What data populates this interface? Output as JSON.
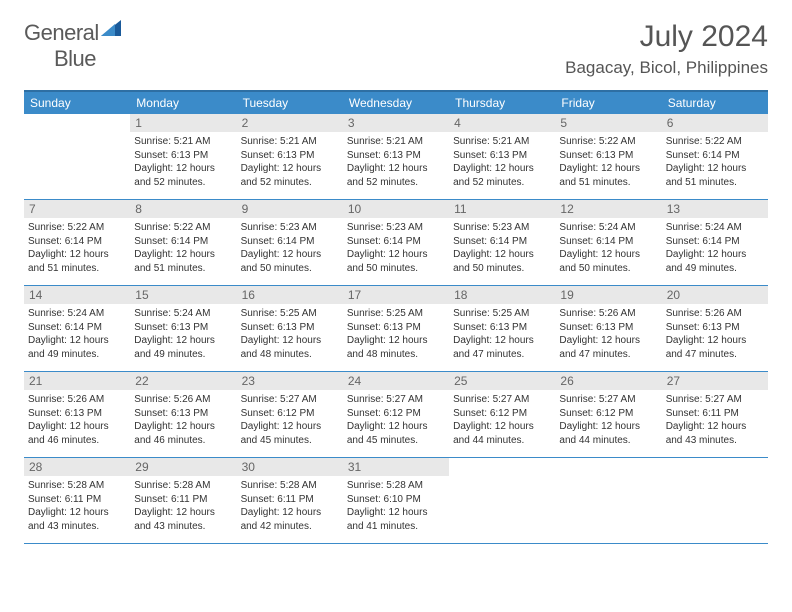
{
  "logo": {
    "textGray": "General",
    "textBlue": "Blue"
  },
  "title": "July 2024",
  "location": "Bagacay, Bicol, Philippines",
  "colors": {
    "headerBg": "#3b8bc9",
    "headerBorderTop": "#2e6fa3",
    "dayNumBg": "#e8e8e8",
    "text": "#333333",
    "logoGray": "#5a5a5a",
    "logoBlue": "#3b7bbf"
  },
  "weekdays": [
    "Sunday",
    "Monday",
    "Tuesday",
    "Wednesday",
    "Thursday",
    "Friday",
    "Saturday"
  ],
  "weeks": [
    [
      null,
      {
        "n": "1",
        "sr": "Sunrise: 5:21 AM",
        "ss": "Sunset: 6:13 PM",
        "dl": "Daylight: 12 hours and 52 minutes."
      },
      {
        "n": "2",
        "sr": "Sunrise: 5:21 AM",
        "ss": "Sunset: 6:13 PM",
        "dl": "Daylight: 12 hours and 52 minutes."
      },
      {
        "n": "3",
        "sr": "Sunrise: 5:21 AM",
        "ss": "Sunset: 6:13 PM",
        "dl": "Daylight: 12 hours and 52 minutes."
      },
      {
        "n": "4",
        "sr": "Sunrise: 5:21 AM",
        "ss": "Sunset: 6:13 PM",
        "dl": "Daylight: 12 hours and 52 minutes."
      },
      {
        "n": "5",
        "sr": "Sunrise: 5:22 AM",
        "ss": "Sunset: 6:13 PM",
        "dl": "Daylight: 12 hours and 51 minutes."
      },
      {
        "n": "6",
        "sr": "Sunrise: 5:22 AM",
        "ss": "Sunset: 6:14 PM",
        "dl": "Daylight: 12 hours and 51 minutes."
      }
    ],
    [
      {
        "n": "7",
        "sr": "Sunrise: 5:22 AM",
        "ss": "Sunset: 6:14 PM",
        "dl": "Daylight: 12 hours and 51 minutes."
      },
      {
        "n": "8",
        "sr": "Sunrise: 5:22 AM",
        "ss": "Sunset: 6:14 PM",
        "dl": "Daylight: 12 hours and 51 minutes."
      },
      {
        "n": "9",
        "sr": "Sunrise: 5:23 AM",
        "ss": "Sunset: 6:14 PM",
        "dl": "Daylight: 12 hours and 50 minutes."
      },
      {
        "n": "10",
        "sr": "Sunrise: 5:23 AM",
        "ss": "Sunset: 6:14 PM",
        "dl": "Daylight: 12 hours and 50 minutes."
      },
      {
        "n": "11",
        "sr": "Sunrise: 5:23 AM",
        "ss": "Sunset: 6:14 PM",
        "dl": "Daylight: 12 hours and 50 minutes."
      },
      {
        "n": "12",
        "sr": "Sunrise: 5:24 AM",
        "ss": "Sunset: 6:14 PM",
        "dl": "Daylight: 12 hours and 50 minutes."
      },
      {
        "n": "13",
        "sr": "Sunrise: 5:24 AM",
        "ss": "Sunset: 6:14 PM",
        "dl": "Daylight: 12 hours and 49 minutes."
      }
    ],
    [
      {
        "n": "14",
        "sr": "Sunrise: 5:24 AM",
        "ss": "Sunset: 6:14 PM",
        "dl": "Daylight: 12 hours and 49 minutes."
      },
      {
        "n": "15",
        "sr": "Sunrise: 5:24 AM",
        "ss": "Sunset: 6:13 PM",
        "dl": "Daylight: 12 hours and 49 minutes."
      },
      {
        "n": "16",
        "sr": "Sunrise: 5:25 AM",
        "ss": "Sunset: 6:13 PM",
        "dl": "Daylight: 12 hours and 48 minutes."
      },
      {
        "n": "17",
        "sr": "Sunrise: 5:25 AM",
        "ss": "Sunset: 6:13 PM",
        "dl": "Daylight: 12 hours and 48 minutes."
      },
      {
        "n": "18",
        "sr": "Sunrise: 5:25 AM",
        "ss": "Sunset: 6:13 PM",
        "dl": "Daylight: 12 hours and 47 minutes."
      },
      {
        "n": "19",
        "sr": "Sunrise: 5:26 AM",
        "ss": "Sunset: 6:13 PM",
        "dl": "Daylight: 12 hours and 47 minutes."
      },
      {
        "n": "20",
        "sr": "Sunrise: 5:26 AM",
        "ss": "Sunset: 6:13 PM",
        "dl": "Daylight: 12 hours and 47 minutes."
      }
    ],
    [
      {
        "n": "21",
        "sr": "Sunrise: 5:26 AM",
        "ss": "Sunset: 6:13 PM",
        "dl": "Daylight: 12 hours and 46 minutes."
      },
      {
        "n": "22",
        "sr": "Sunrise: 5:26 AM",
        "ss": "Sunset: 6:13 PM",
        "dl": "Daylight: 12 hours and 46 minutes."
      },
      {
        "n": "23",
        "sr": "Sunrise: 5:27 AM",
        "ss": "Sunset: 6:12 PM",
        "dl": "Daylight: 12 hours and 45 minutes."
      },
      {
        "n": "24",
        "sr": "Sunrise: 5:27 AM",
        "ss": "Sunset: 6:12 PM",
        "dl": "Daylight: 12 hours and 45 minutes."
      },
      {
        "n": "25",
        "sr": "Sunrise: 5:27 AM",
        "ss": "Sunset: 6:12 PM",
        "dl": "Daylight: 12 hours and 44 minutes."
      },
      {
        "n": "26",
        "sr": "Sunrise: 5:27 AM",
        "ss": "Sunset: 6:12 PM",
        "dl": "Daylight: 12 hours and 44 minutes."
      },
      {
        "n": "27",
        "sr": "Sunrise: 5:27 AM",
        "ss": "Sunset: 6:11 PM",
        "dl": "Daylight: 12 hours and 43 minutes."
      }
    ],
    [
      {
        "n": "28",
        "sr": "Sunrise: 5:28 AM",
        "ss": "Sunset: 6:11 PM",
        "dl": "Daylight: 12 hours and 43 minutes."
      },
      {
        "n": "29",
        "sr": "Sunrise: 5:28 AM",
        "ss": "Sunset: 6:11 PM",
        "dl": "Daylight: 12 hours and 43 minutes."
      },
      {
        "n": "30",
        "sr": "Sunrise: 5:28 AM",
        "ss": "Sunset: 6:11 PM",
        "dl": "Daylight: 12 hours and 42 minutes."
      },
      {
        "n": "31",
        "sr": "Sunrise: 5:28 AM",
        "ss": "Sunset: 6:10 PM",
        "dl": "Daylight: 12 hours and 41 minutes."
      },
      null,
      null,
      null
    ]
  ]
}
